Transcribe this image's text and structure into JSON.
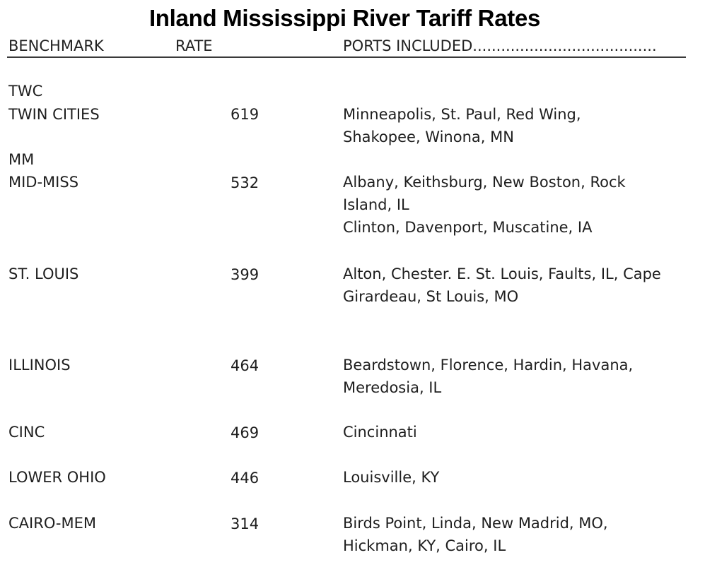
{
  "title": "Inland Mississippi River Tariff Rates",
  "headers": {
    "benchmark": "BENCHMARK",
    "rate": "RATE",
    "ports": "PORTS INCLUDED......................................."
  },
  "rows": [
    {
      "benchmark": [
        "TWC",
        "TWIN CITIES"
      ],
      "rate": "619",
      "ports": [
        "Minneapolis, St. Paul, Red Wing,",
        "Shakopee, Winona, MN"
      ]
    },
    {
      "benchmark": [
        "MM",
        "MID-MISS"
      ],
      "rate": "532",
      "ports": [
        "Albany, Keithsburg, New Boston, Rock",
        "Island, IL",
        "Clinton, Davenport, Muscatine, IA"
      ]
    },
    {
      "benchmark": [
        "ST. LOUIS"
      ],
      "rate": "399",
      "ports": [
        "Alton, Chester. E. St. Louis, Faults, IL, Cape",
        "Girardeau, St Louis, MO"
      ]
    },
    {
      "benchmark": [
        "ILLINOIS"
      ],
      "rate": "464",
      "ports": [
        "Beardstown, Florence, Hardin, Havana,",
        "Meredosia, IL"
      ]
    },
    {
      "benchmark": [
        "CINC"
      ],
      "rate": "469",
      "ports": [
        "Cincinnati"
      ]
    },
    {
      "benchmark": [
        "LOWER OHIO"
      ],
      "rate": "446",
      "ports": [
        "Louisville, KY"
      ]
    },
    {
      "benchmark": [
        "CAIRO-MEM"
      ],
      "rate": "314",
      "ports": [
        "Birds Point, Linda, New Madrid, MO,",
        "Hickman, KY, Cairo, IL"
      ]
    }
  ]
}
